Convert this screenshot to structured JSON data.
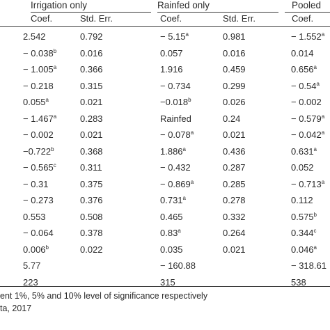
{
  "groups": [
    "Irrigation only",
    "Rainfed only",
    "Pooled"
  ],
  "subheaders": [
    "Coef.",
    "Std. Err.",
    "Coef.",
    "Std. Err.",
    "Coef."
  ],
  "rows": [
    [
      {
        "v": "2.542",
        "s": ""
      },
      {
        "v": "0.792",
        "s": ""
      },
      {
        "v": "− 5.15",
        "s": "a"
      },
      {
        "v": "0.981",
        "s": ""
      },
      {
        "v": "− 1.552",
        "s": "a"
      }
    ],
    [
      {
        "v": "− 0.038",
        "s": "b"
      },
      {
        "v": "0.016",
        "s": ""
      },
      {
        "v": "0.057",
        "s": ""
      },
      {
        "v": "0.016",
        "s": ""
      },
      {
        "v": "0.014",
        "s": ""
      }
    ],
    [
      {
        "v": "− 1.005",
        "s": "a"
      },
      {
        "v": "0.366",
        "s": ""
      },
      {
        "v": "1.916",
        "s": ""
      },
      {
        "v": "0.459",
        "s": ""
      },
      {
        "v": "0.656",
        "s": "a"
      }
    ],
    [
      {
        "v": "− 0.218",
        "s": ""
      },
      {
        "v": "0.315",
        "s": ""
      },
      {
        "v": "− 0.734",
        "s": ""
      },
      {
        "v": "0.299",
        "s": ""
      },
      {
        "v": "− 0.54",
        "s": "a"
      }
    ],
    [
      {
        "v": "0.055",
        "s": "a"
      },
      {
        "v": "0.021",
        "s": ""
      },
      {
        "v": "−0.018",
        "s": "b"
      },
      {
        "v": "0.026",
        "s": ""
      },
      {
        "v": "− 0.002",
        "s": ""
      }
    ],
    [
      {
        "v": "− 1.467",
        "s": "a"
      },
      {
        "v": "0.283",
        "s": ""
      },
      {
        "v": "Rainfed",
        "s": ""
      },
      {
        "v": "0.24",
        "s": ""
      },
      {
        "v": "− 0.579",
        "s": "a"
      }
    ],
    [
      {
        "v": "− 0.002",
        "s": ""
      },
      {
        "v": "0.021",
        "s": ""
      },
      {
        "v": "− 0.078",
        "s": "a"
      },
      {
        "v": "0.021",
        "s": ""
      },
      {
        "v": "− 0.042",
        "s": "a"
      }
    ],
    [
      {
        "v": "−0.722",
        "s": "b"
      },
      {
        "v": "0.368",
        "s": ""
      },
      {
        "v": "1.886",
        "s": "a"
      },
      {
        "v": "0.436",
        "s": ""
      },
      {
        "v": "0.631",
        "s": "a"
      }
    ],
    [
      {
        "v": "− 0.565",
        "s": "c"
      },
      {
        "v": "0.311",
        "s": ""
      },
      {
        "v": "− 0.432",
        "s": ""
      },
      {
        "v": "0.287",
        "s": ""
      },
      {
        "v": "0.052",
        "s": ""
      }
    ],
    [
      {
        "v": "− 0.31",
        "s": ""
      },
      {
        "v": "0.375",
        "s": ""
      },
      {
        "v": "− 0.869",
        "s": "a"
      },
      {
        "v": "0.285",
        "s": ""
      },
      {
        "v": "− 0.713",
        "s": "a"
      }
    ],
    [
      {
        "v": "− 0.273",
        "s": ""
      },
      {
        "v": "0.376",
        "s": ""
      },
      {
        "v": "0.731",
        "s": "a"
      },
      {
        "v": "0.278",
        "s": ""
      },
      {
        "v": "0.112",
        "s": ""
      }
    ],
    [
      {
        "v": "0.553",
        "s": ""
      },
      {
        "v": "0.508",
        "s": ""
      },
      {
        "v": "0.465",
        "s": ""
      },
      {
        "v": "0.332",
        "s": ""
      },
      {
        "v": "0.575",
        "s": "b"
      }
    ],
    [
      {
        "v": "− 0.064",
        "s": ""
      },
      {
        "v": "0.378",
        "s": ""
      },
      {
        "v": "0.83",
        "s": "a"
      },
      {
        "v": "0.264",
        "s": ""
      },
      {
        "v": "0.344",
        "s": "c"
      }
    ],
    [
      {
        "v": "0.006",
        "s": "b"
      },
      {
        "v": "0.022",
        "s": ""
      },
      {
        "v": "0.035",
        "s": ""
      },
      {
        "v": "0.021",
        "s": ""
      },
      {
        "v": "0.046",
        "s": "a"
      }
    ],
    [
      {
        "v": "5.77",
        "s": ""
      },
      {
        "v": "",
        "s": ""
      },
      {
        "v": "− 160.88",
        "s": ""
      },
      {
        "v": "",
        "s": ""
      },
      {
        "v": "− 318.61",
        "s": ""
      }
    ],
    [
      {
        "v": "223",
        "s": ""
      },
      {
        "v": "",
        "s": ""
      },
      {
        "v": "315",
        "s": ""
      },
      {
        "v": "",
        "s": ""
      },
      {
        "v": "538",
        "s": ""
      }
    ]
  ],
  "footnotes": [
    "ent 1%, 5% and 10% level of significance respectively",
    "ta, 2017"
  ]
}
